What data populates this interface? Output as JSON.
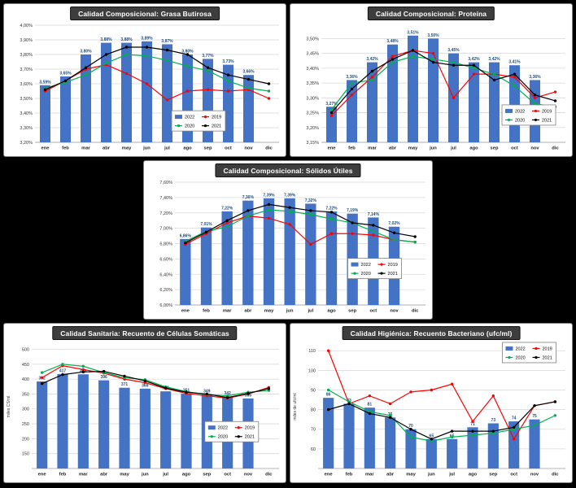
{
  "page": {
    "background": "#000000"
  },
  "colors": {
    "bar": "#4472C4",
    "red_2019": "#FF0000",
    "green_2020": "#00B050",
    "black_2021": "#000000",
    "bar_label": "#1F4E79",
    "grid": "#D9D9D9",
    "axis_text": "#333333",
    "title_bg": "#3d3d3d"
  },
  "chart_data": [
    {
      "type": "bar+line",
      "title": "Calidad Composicional: Grasa Butirosa",
      "categories": [
        "ene",
        "feb",
        "mar",
        "abr",
        "may",
        "jun",
        "jul",
        "ago",
        "sep",
        "oct",
        "nov",
        "dic"
      ],
      "ylabel": "",
      "ylim": [
        3.2,
        4.0
      ],
      "yticks": [
        3.2,
        3.3,
        3.4,
        3.5,
        3.6,
        3.7,
        3.8,
        3.9,
        4.0
      ],
      "ytick_labels": [
        "3,20%",
        "3,30%",
        "3,40%",
        "3,50%",
        "3,60%",
        "3,70%",
        "3,80%",
        "3,90%",
        "4,00%"
      ],
      "grid": true,
      "legend_position": "inside bottom-center",
      "legend_pos": [
        0.56,
        0.73
      ],
      "series": [
        {
          "name": "2022",
          "type": "bar",
          "color": "#4472C4",
          "values": [
            3.59,
            3.65,
            3.8,
            3.88,
            3.88,
            3.89,
            3.87,
            3.8,
            3.77,
            3.73,
            3.66,
            null
          ],
          "labels": [
            "3,59%",
            "3,65%",
            "3,80%",
            "3,88%",
            "3,88%",
            "3,89%",
            "3,87%",
            "3,80%",
            "3,77%",
            "3,73%",
            "3,66%",
            ""
          ]
        },
        {
          "name": "2019",
          "type": "line",
          "color": "#FF0000",
          "values": [
            3.55,
            3.62,
            3.7,
            3.73,
            3.67,
            3.6,
            3.49,
            3.55,
            3.56,
            3.55,
            3.56,
            3.5
          ]
        },
        {
          "name": "2020",
          "type": "line",
          "color": "#00B050",
          "values": [
            3.57,
            3.61,
            3.66,
            3.74,
            3.8,
            3.79,
            3.76,
            3.72,
            3.69,
            3.62,
            3.57,
            3.55
          ]
        },
        {
          "name": "2021",
          "type": "line",
          "color": "#000000",
          "values": [
            3.56,
            3.62,
            3.71,
            3.8,
            3.85,
            3.85,
            3.83,
            3.8,
            3.71,
            3.66,
            3.63,
            3.6
          ]
        }
      ]
    },
    {
      "type": "bar+line",
      "title": "Calidad Composicional: Proteína",
      "categories": [
        "ene",
        "feb",
        "mar",
        "abr",
        "may",
        "jun",
        "jul",
        "ago",
        "sep",
        "oct",
        "nov",
        "dic"
      ],
      "ylabel": "",
      "ylim": [
        3.15,
        3.545
      ],
      "yticks": [
        3.15,
        3.2,
        3.25,
        3.3,
        3.35,
        3.4,
        3.45,
        3.5
      ],
      "ytick_labels": [
        "3,15%",
        "3,20%",
        "3,25%",
        "3,30%",
        "3,35%",
        "3,40%",
        "3,45%",
        "3,50%"
      ],
      "grid": true,
      "legend_position": "inside middle-right",
      "legend_pos": [
        0.74,
        0.68
      ],
      "series": [
        {
          "name": "2022",
          "type": "bar",
          "color": "#4472C4",
          "values": [
            3.27,
            3.36,
            3.42,
            3.48,
            3.51,
            3.5,
            3.45,
            3.42,
            3.42,
            3.41,
            3.36,
            null
          ],
          "labels": [
            "3,27%",
            "3,36%",
            "3,42%",
            "3,48%",
            "3,51%",
            "3,50%",
            "3,45%",
            "3,42%",
            "3,42%",
            "3,41%",
            "3,36%",
            ""
          ]
        },
        {
          "name": "2019",
          "type": "line",
          "color": "#FF0000",
          "values": [
            3.24,
            3.31,
            3.37,
            3.44,
            3.46,
            3.45,
            3.3,
            3.38,
            3.38,
            3.37,
            3.3,
            3.32
          ]
        },
        {
          "name": "2020",
          "type": "line",
          "color": "#00B050",
          "values": [
            3.26,
            3.35,
            3.36,
            3.42,
            3.44,
            3.43,
            3.42,
            3.4,
            3.38,
            3.34,
            3.28,
            3.27
          ]
        },
        {
          "name": "2021",
          "type": "line",
          "color": "#000000",
          "values": [
            3.25,
            3.33,
            3.39,
            3.43,
            3.46,
            3.42,
            3.41,
            3.41,
            3.36,
            3.38,
            3.31,
            3.29
          ]
        }
      ]
    },
    {
      "type": "bar+line",
      "title": "Calidad Composicional: Sólidos Útiles",
      "categories": [
        "ene",
        "feb",
        "mar",
        "abr",
        "may",
        "jun",
        "jul",
        "ago",
        "sep",
        "oct",
        "nov",
        "dic"
      ],
      "ylabel": "",
      "ylim": [
        6.0,
        7.6
      ],
      "yticks": [
        6.0,
        6.2,
        6.4,
        6.6,
        6.8,
        7.0,
        7.2,
        7.4,
        7.6
      ],
      "ytick_labels": [
        "6,00%",
        "6,20%",
        "6,40%",
        "6,60%",
        "6,80%",
        "7,00%",
        "7,20%",
        "7,40%",
        "7,60%"
      ],
      "grid": true,
      "legend_position": "inside bottom-right",
      "legend_pos": [
        0.69,
        0.62
      ],
      "series": [
        {
          "name": "2022",
          "type": "bar",
          "color": "#4472C4",
          "values": [
            6.86,
            7.01,
            7.22,
            7.36,
            7.39,
            7.39,
            7.32,
            7.22,
            7.19,
            7.14,
            7.02,
            null
          ],
          "labels": [
            "6,86%",
            "7,01%",
            "7,22%",
            "7,36%",
            "7,39%",
            "7,39%",
            "7,32%",
            "7,22%",
            "7,19%",
            "7,14%",
            "7,02%",
            ""
          ]
        },
        {
          "name": "2019",
          "type": "line",
          "color": "#FF0000",
          "values": [
            6.79,
            6.93,
            7.07,
            7.16,
            7.13,
            7.05,
            6.79,
            6.93,
            6.93,
            6.91,
            6.85,
            6.82
          ]
        },
        {
          "name": "2020",
          "type": "line",
          "color": "#00B050",
          "values": [
            6.83,
            6.96,
            7.02,
            7.16,
            7.24,
            7.22,
            7.18,
            7.12,
            7.07,
            6.96,
            6.85,
            6.82
          ]
        },
        {
          "name": "2021",
          "type": "line",
          "color": "#000000",
          "values": [
            6.81,
            6.95,
            7.1,
            7.23,
            7.31,
            7.27,
            7.23,
            7.21,
            7.07,
            7.04,
            6.94,
            6.89
          ]
        }
      ]
    },
    {
      "type": "bar+line",
      "title": "Calidad Sanitaria: Recuento de Células Somáticas",
      "categories": [
        "ene",
        "feb",
        "mar",
        "abr",
        "may",
        "jun",
        "jul",
        "ago",
        "sep",
        "oct",
        "nov",
        "dic"
      ],
      "ylabel": "miles CS/ml",
      "ylim": [
        100,
        515
      ],
      "yticks": [
        150,
        200,
        250,
        300,
        350,
        400,
        450,
        500
      ],
      "ytick_labels": [
        "150",
        "200",
        "250",
        "300",
        "350",
        "400",
        "450",
        "500"
      ],
      "grid": true,
      "legend_position": "inside bottom-right",
      "legend_pos": [
        0.7,
        0.62
      ],
      "series": [
        {
          "name": "2022",
          "type": "bar",
          "color": "#4472C4",
          "values": [
            392,
            417,
            416,
            396,
            371,
            368,
            359,
            351,
            349,
            342,
            335,
            null
          ],
          "labels": [
            "392",
            "417",
            "416",
            "396",
            "371",
            "368",
            "359",
            "351",
            "349",
            "342",
            "335",
            ""
          ]
        },
        {
          "name": "2019",
          "type": "line",
          "color": "#FF0000",
          "values": [
            405,
            445,
            432,
            420,
            400,
            388,
            368,
            352,
            344,
            336,
            350,
            372
          ]
        },
        {
          "name": "2020",
          "type": "line",
          "color": "#00B050",
          "values": [
            422,
            450,
            443,
            422,
            405,
            398,
            374,
            358,
            348,
            344,
            356,
            362
          ]
        },
        {
          "name": "2021",
          "type": "line",
          "color": "#000000",
          "values": [
            385,
            415,
            424,
            426,
            410,
            394,
            370,
            356,
            350,
            338,
            352,
            368
          ]
        }
      ]
    },
    {
      "type": "bar+line",
      "title": "Calidad Higiénica: Recuento Bacteriano (ufc/ml)",
      "categories": [
        "ene",
        "feb",
        "mar",
        "abr",
        "may",
        "jun",
        "jul",
        "ago",
        "sep",
        "oct",
        "nov",
        "dic"
      ],
      "ylabel": "miles de ufc/ml",
      "ylim": [
        50,
        113
      ],
      "yticks": [
        60,
        70,
        80,
        90,
        100,
        110
      ],
      "ytick_labels": [
        "60",
        "70",
        "80",
        "90",
        "100",
        "110"
      ],
      "grid": true,
      "legend_position": "inside top-right",
      "legend_pos": [
        0.745,
        -0.02
      ],
      "series": [
        {
          "name": "2022",
          "type": "bar",
          "color": "#4472C4",
          "values": [
            86,
            83,
            81,
            76,
            70,
            65,
            65,
            71,
            73,
            74,
            75,
            null
          ],
          "labels": [
            "86",
            "83",
            "81",
            "76",
            "70",
            "65",
            "65",
            "71",
            "73",
            "74",
            "75",
            ""
          ]
        },
        {
          "name": "2019",
          "type": "line",
          "color": "#FF0000",
          "values": [
            110,
            83,
            87,
            83,
            89,
            90,
            93,
            74,
            87,
            65,
            82,
            84
          ]
        },
        {
          "name": "2020",
          "type": "line",
          "color": "#00B050",
          "values": [
            90,
            84,
            79,
            77,
            66,
            64,
            66,
            67,
            68,
            70,
            72,
            77
          ]
        },
        {
          "name": "2021",
          "type": "line",
          "color": "#000000",
          "values": [
            80,
            83,
            78,
            76,
            70,
            65,
            69,
            69,
            69,
            71,
            82,
            84
          ]
        }
      ]
    }
  ]
}
